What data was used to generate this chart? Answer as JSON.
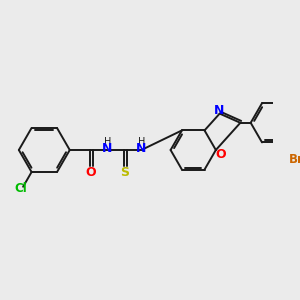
{
  "background_color": "#ebebeb",
  "bond_color": "#1a1a1a",
  "atom_colors": {
    "Cl": "#00bb00",
    "O": "#ff0000",
    "N": "#0000ff",
    "S": "#bbbb00",
    "Br": "#cc6600"
  },
  "lw": 1.4,
  "figsize": [
    3.0,
    3.0
  ],
  "dpi": 100
}
